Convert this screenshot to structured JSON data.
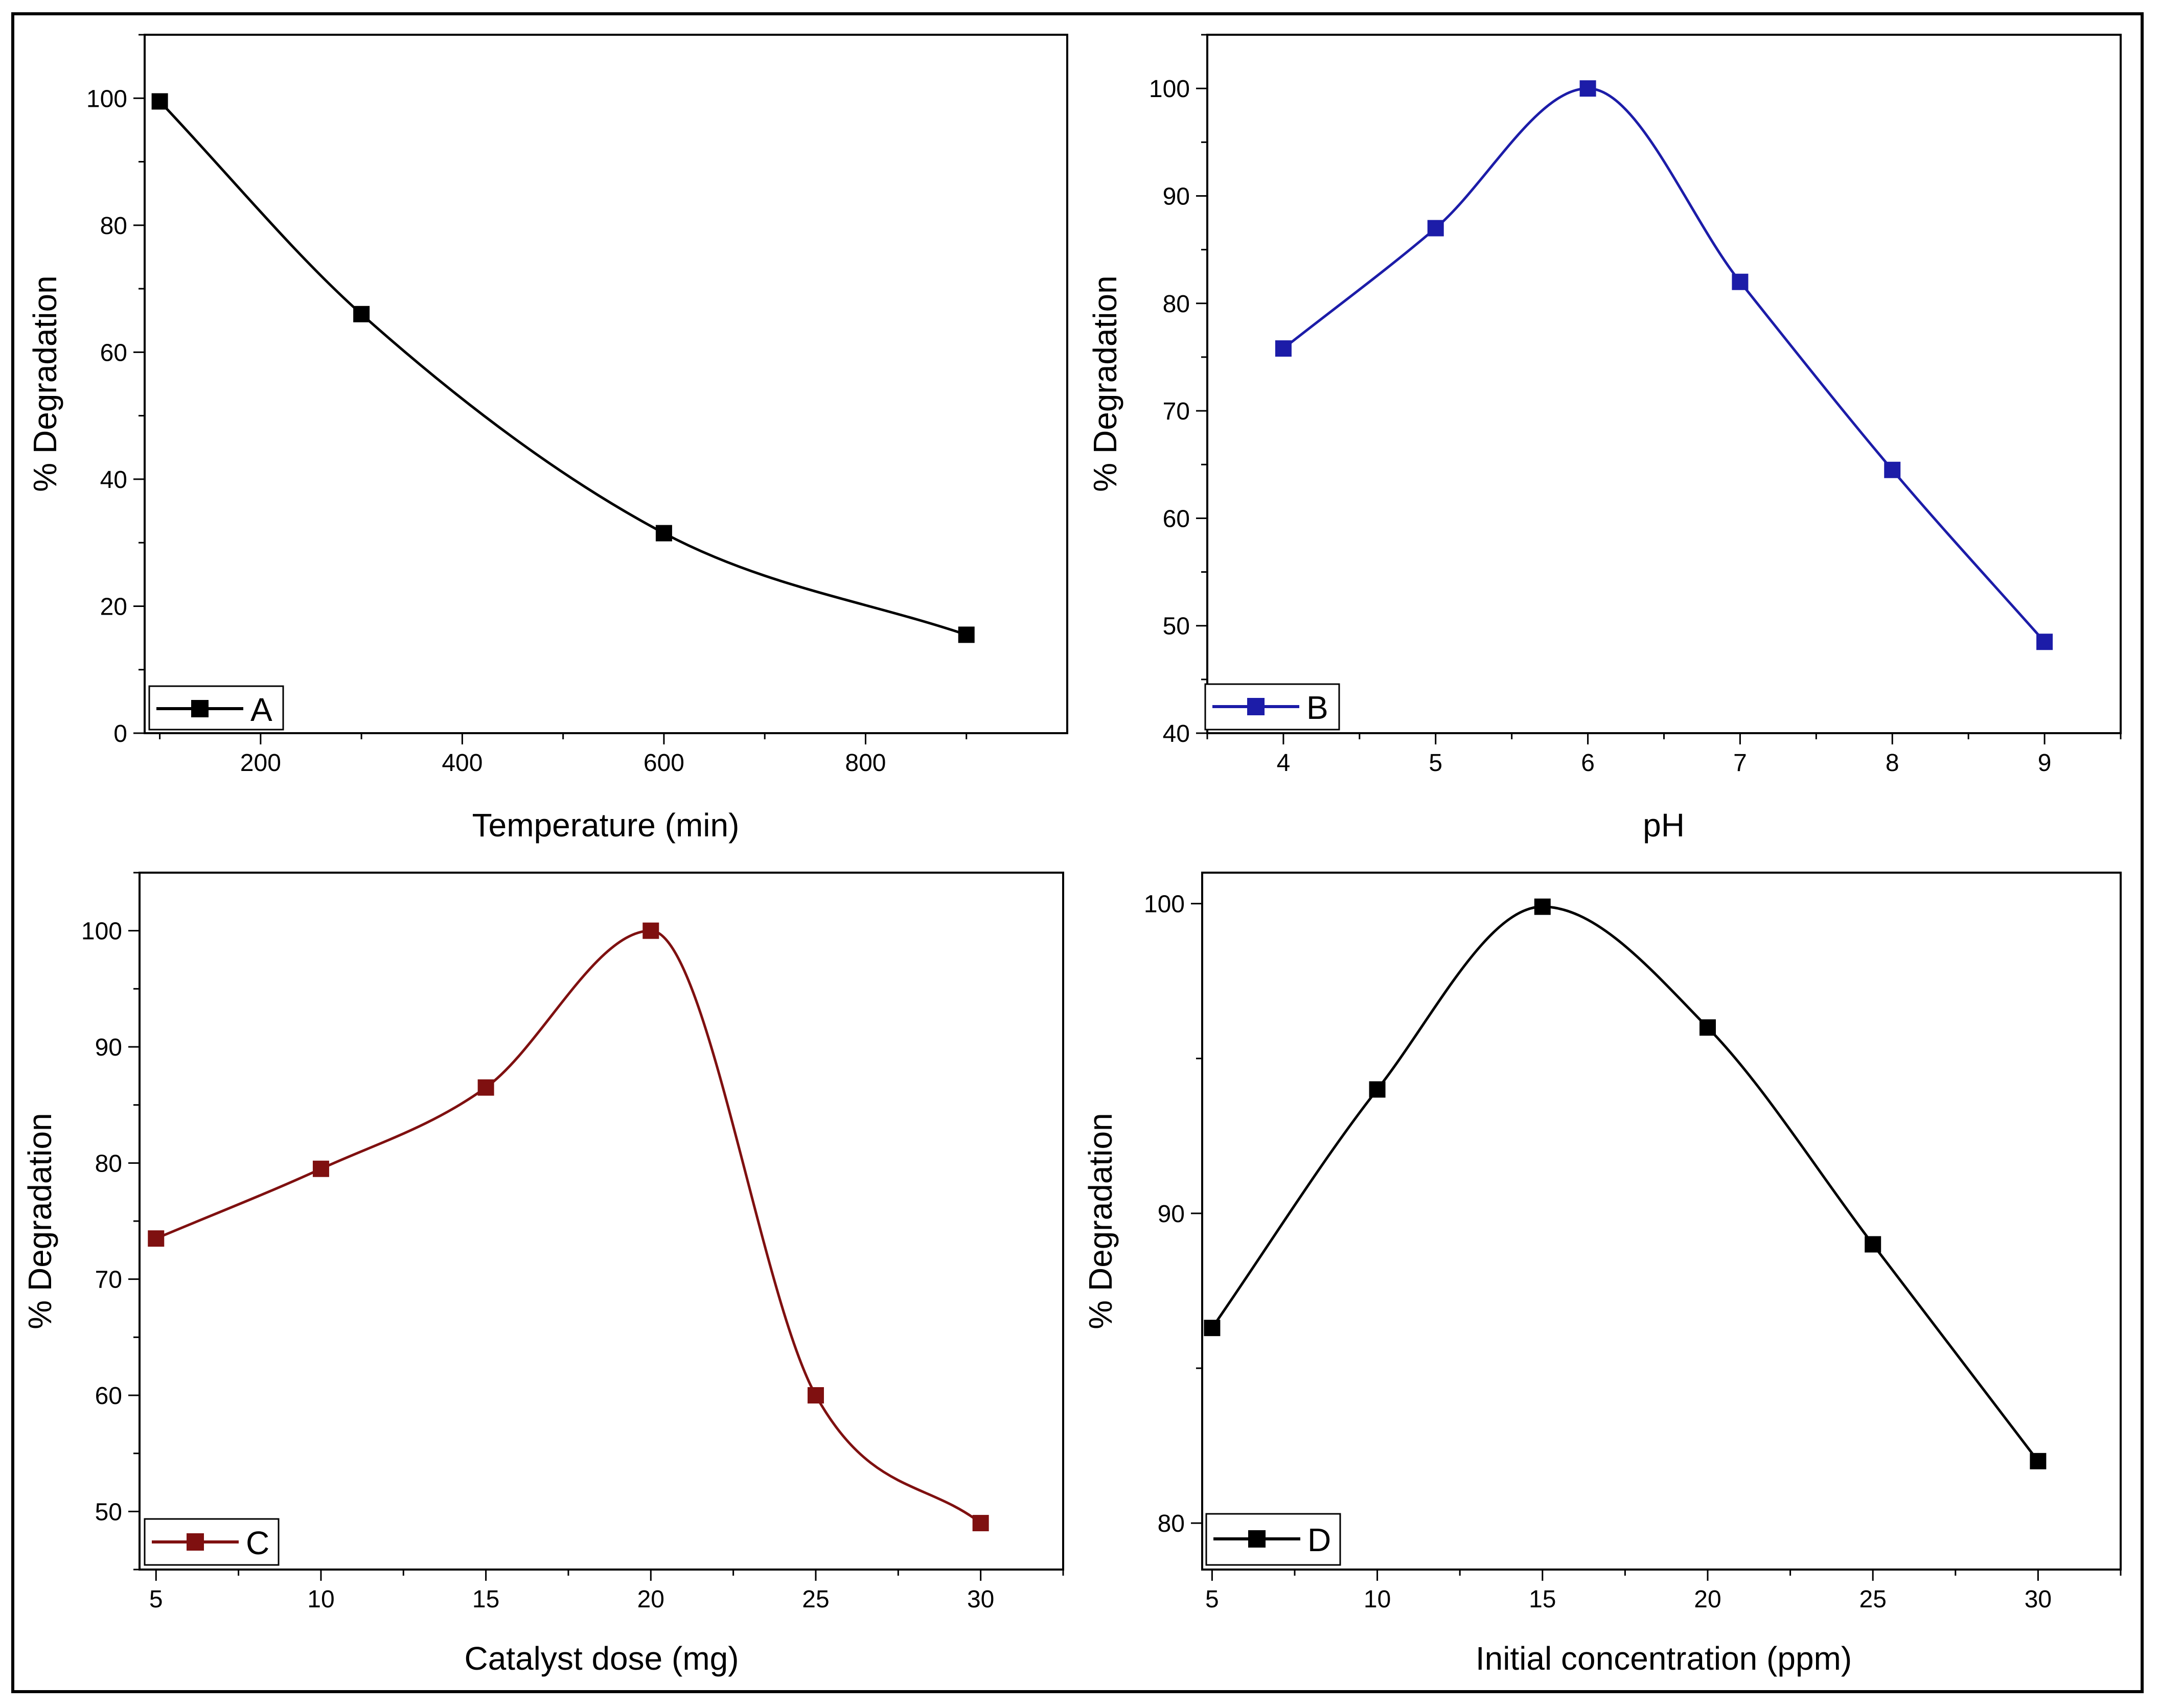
{
  "chart_data": [
    {
      "id": "A",
      "type": "line",
      "legend": "A",
      "color": "#000000",
      "x": [
        100,
        300,
        600,
        900
      ],
      "y": [
        99.5,
        66,
        31.5,
        15.5
      ],
      "xlabel": "Temperature (min)",
      "ylabel": "% Degradation",
      "xlim": [
        85,
        1000
      ],
      "ylim": [
        0,
        110
      ],
      "xticks": [
        200,
        400,
        600,
        800
      ],
      "xtick_labels": [
        "200",
        "400",
        "600",
        "800"
      ],
      "yticks": [
        0,
        20,
        40,
        60,
        80,
        100
      ],
      "ytick_labels": [
        "0",
        "20",
        "40",
        "60",
        "80",
        "100"
      ],
      "legend_position": "bottom-left",
      "smooth": true
    },
    {
      "id": "B",
      "type": "line",
      "legend": "B",
      "color": "#1c1ca8",
      "x": [
        4,
        5,
        6,
        7,
        8,
        9
      ],
      "y": [
        75.8,
        87,
        100,
        82,
        64.5,
        48.5
      ],
      "xlabel": "pH",
      "ylabel": "% Degradation",
      "xlim": [
        3.5,
        9.5
      ],
      "ylim": [
        40,
        105
      ],
      "xticks": [
        4,
        5,
        6,
        7,
        8,
        9
      ],
      "xtick_labels": [
        "4",
        "5",
        "6",
        "7",
        "8",
        "9"
      ],
      "yticks": [
        40,
        50,
        60,
        70,
        80,
        90,
        100
      ],
      "ytick_labels": [
        "40",
        "50",
        "60",
        "70",
        "80",
        "90",
        "100"
      ],
      "legend_position": "bottom-left",
      "smooth": true
    },
    {
      "id": "C",
      "type": "line",
      "legend": "C",
      "color": "#7f1010",
      "x": [
        5,
        10,
        15,
        20,
        25,
        30
      ],
      "y": [
        73.5,
        79.5,
        86.5,
        100,
        60,
        49
      ],
      "xlabel": "Catalyst dose (mg)",
      "ylabel": "% Degradation",
      "xlim": [
        4.5,
        32.5
      ],
      "ylim": [
        45,
        105
      ],
      "xticks": [
        5,
        10,
        15,
        20,
        25,
        30
      ],
      "xtick_labels": [
        "5",
        "10",
        "15",
        "20",
        "25",
        "30"
      ],
      "yticks": [
        50,
        60,
        70,
        80,
        90,
        100
      ],
      "ytick_labels": [
        "50",
        "60",
        "70",
        "80",
        "90",
        "100"
      ],
      "legend_position": "bottom-left",
      "smooth": true
    },
    {
      "id": "D",
      "type": "line",
      "legend": "D",
      "color": "#000000",
      "x": [
        5,
        10,
        15,
        20,
        25,
        30
      ],
      "y": [
        86.3,
        94,
        99.9,
        96,
        89,
        82
      ],
      "xlabel": "Initial concentration (ppm)",
      "ylabel": "% Degradation",
      "xlim": [
        4.7,
        32.5
      ],
      "ylim": [
        78.5,
        101
      ],
      "xticks": [
        5,
        10,
        15,
        20,
        25,
        30
      ],
      "xtick_labels": [
        "5",
        "10",
        "15",
        "20",
        "25",
        "30"
      ],
      "yticks": [
        80,
        90,
        100
      ],
      "ytick_labels": [
        "80",
        "90",
        "100"
      ],
      "legend_position": "bottom-left",
      "smooth": true
    }
  ]
}
